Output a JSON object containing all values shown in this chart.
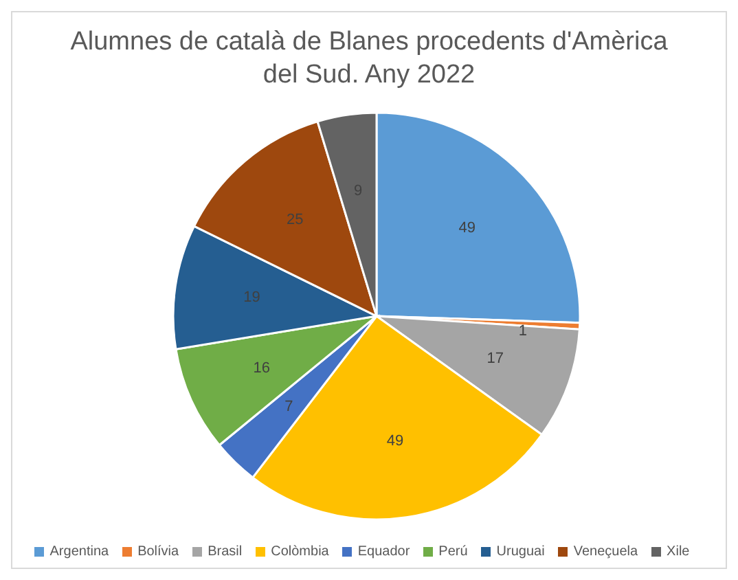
{
  "chart_data": {
    "type": "pie",
    "title": "Alumnes de català de Blanes procedents d'Amèrica del Sud. Any 2022",
    "categories": [
      "Argentina",
      "Bolívia",
      "Brasil",
      "Colòmbia",
      "Equador",
      "Perú",
      "Uruguai",
      "Veneçuela",
      "Xile"
    ],
    "values": [
      49,
      1,
      17,
      49,
      7,
      16,
      19,
      25,
      9
    ],
    "colors": [
      "#5b9bd5",
      "#ed7d31",
      "#a5a5a5",
      "#ffc000",
      "#4472c4",
      "#70ad47",
      "#255e91",
      "#9e480e",
      "#636363"
    ],
    "data_labels": true,
    "legend": "bottom"
  }
}
